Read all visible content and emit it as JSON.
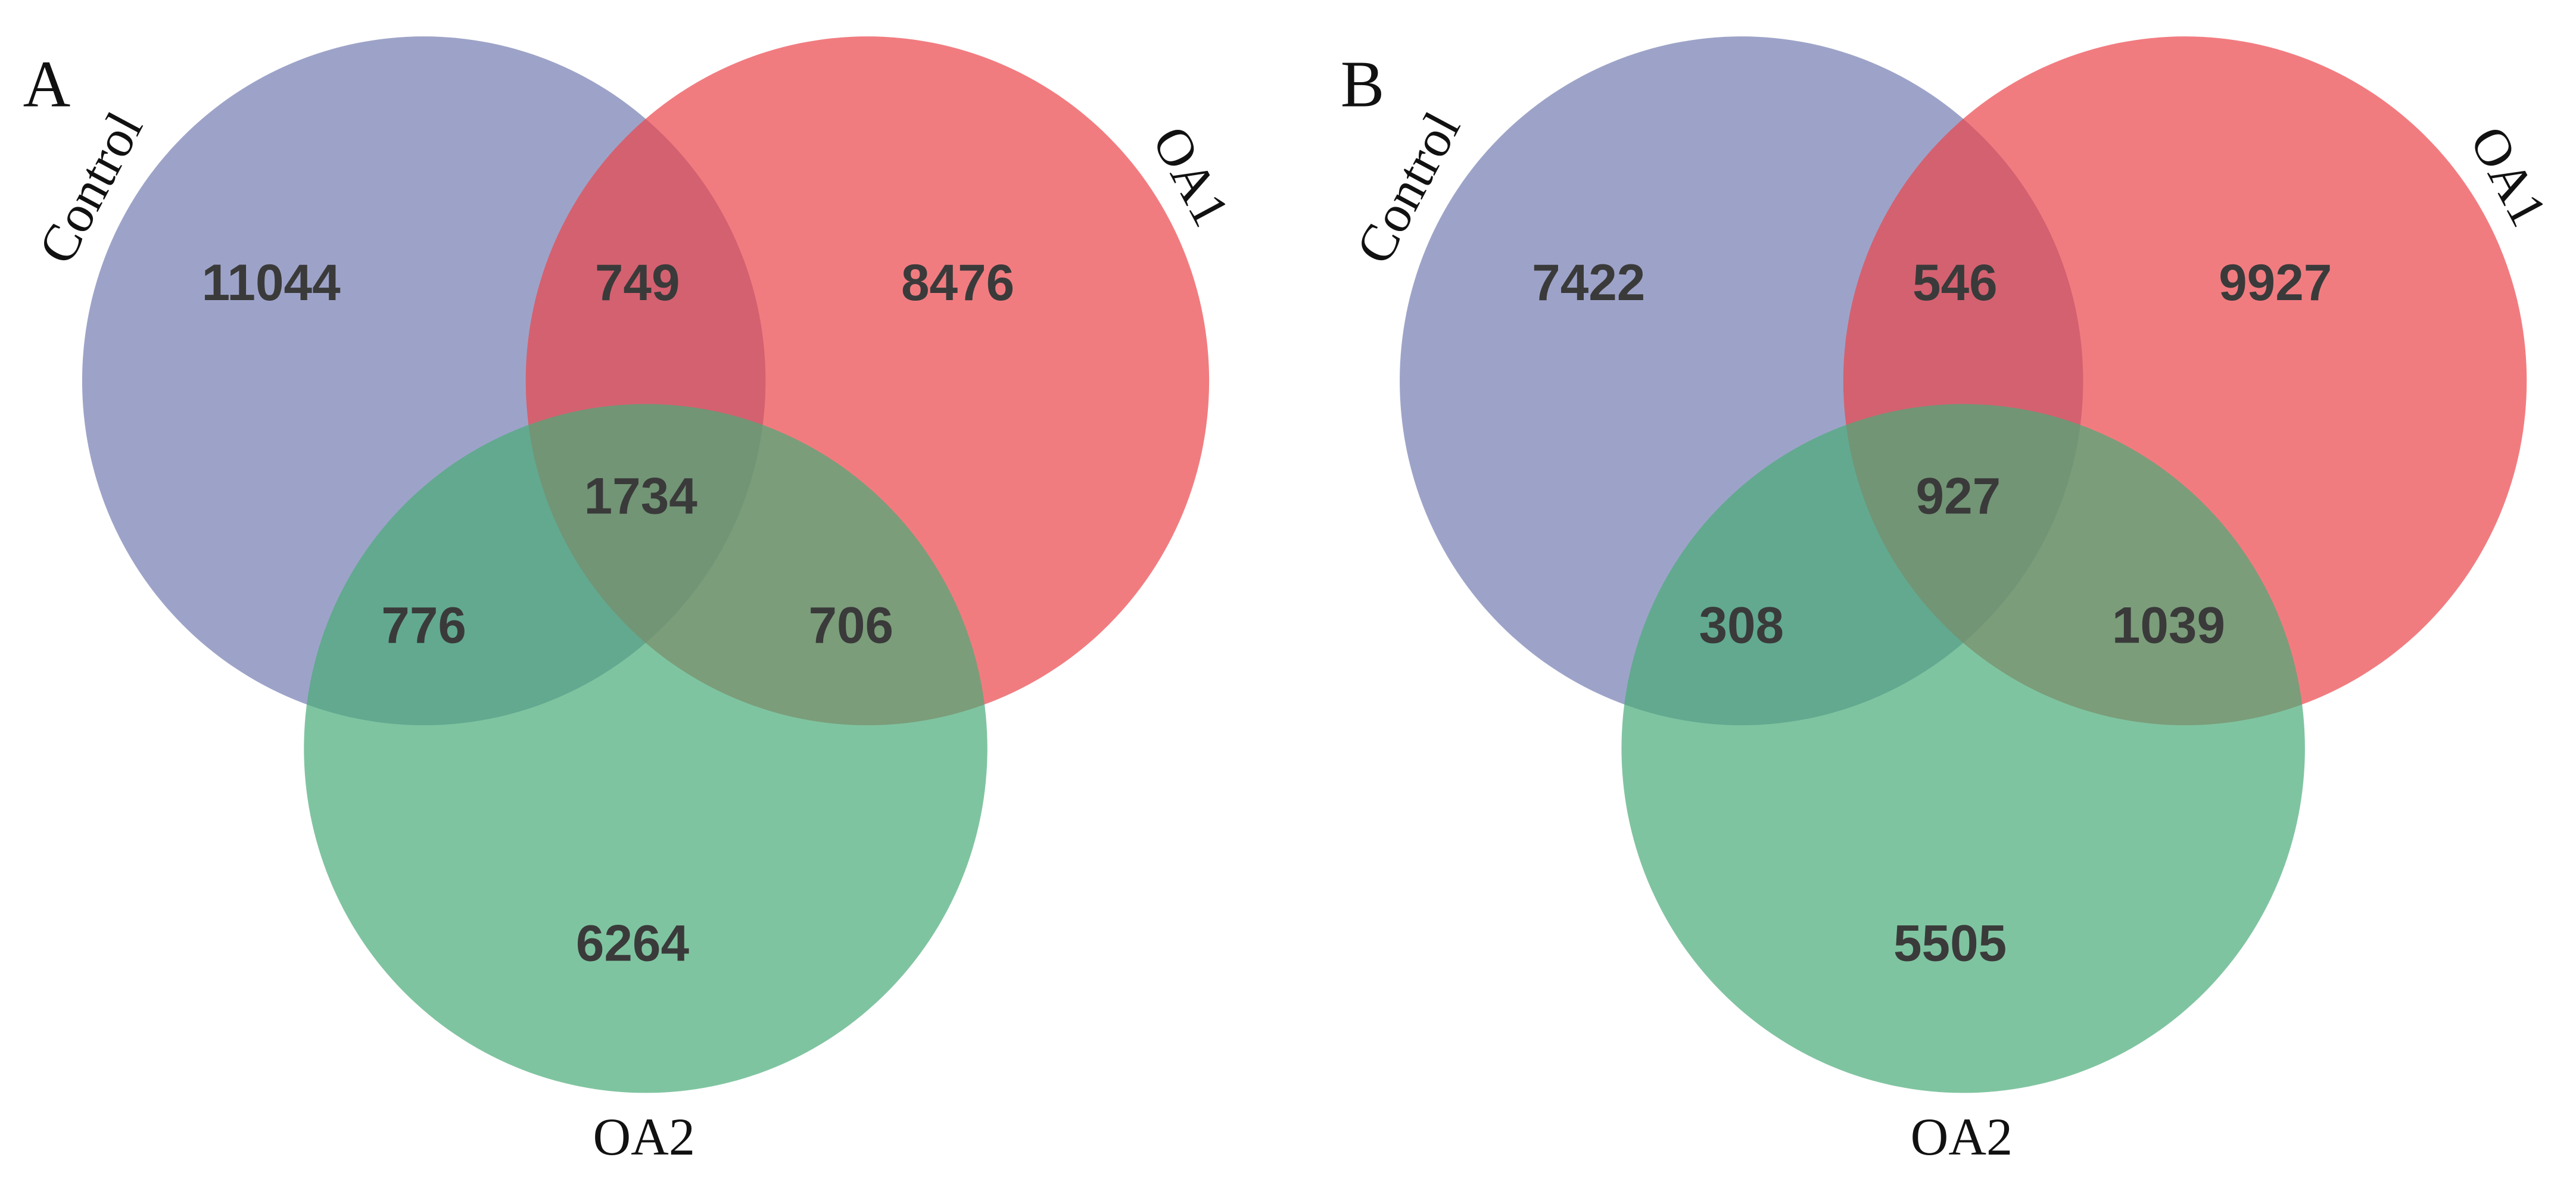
{
  "chart_data": [
    {
      "type": "venn",
      "panel_label": "A",
      "series": [
        {
          "name": "Control",
          "color": "#747cb0",
          "value": 11044
        },
        {
          "name": "OA1",
          "color": "#eb454a",
          "value": 8476
        },
        {
          "name": "OA2",
          "color": "#48ab77",
          "value": 6264
        }
      ],
      "intersections": [
        749,
        776,
        706,
        1734
      ]
    },
    {
      "type": "venn",
      "panel_label": "B",
      "series": [
        {
          "name": "Control",
          "color": "#747cb0",
          "value": 7422
        },
        {
          "name": "OA1",
          "color": "#eb454a",
          "value": 9927
        },
        {
          "name": "OA2",
          "color": "#48ab77",
          "value": 5505
        }
      ],
      "intersections": [
        546,
        308,
        1039,
        927
      ]
    }
  ]
}
